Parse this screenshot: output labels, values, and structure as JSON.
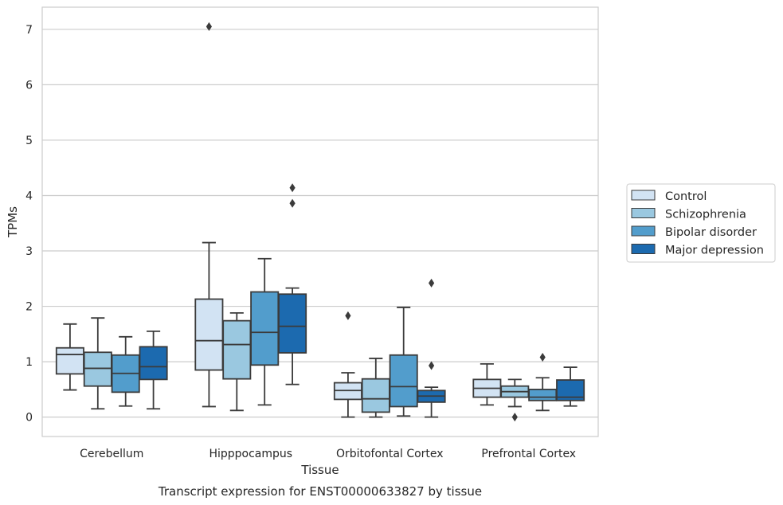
{
  "chart_data": {
    "type": "box",
    "caption": "Transcript expression for ENST00000633827 by tissue",
    "xlabel": "Tissue",
    "ylabel": "TPMs",
    "ylim": [
      -0.35,
      7.4
    ],
    "yticks": [
      0,
      1,
      2,
      3,
      4,
      5,
      6,
      7
    ],
    "grid": "horizontal",
    "legend_position": "right-outside",
    "categories": [
      "Cerebellum",
      "Hipppocampus",
      "Orbitofontal Cortex",
      "Prefrontal Cortex"
    ],
    "series": [
      {
        "name": "Control",
        "color": "#d2e3f3",
        "boxes": [
          {
            "whisker_low": 0.49,
            "q1": 0.78,
            "median": 1.13,
            "q3": 1.25,
            "whisker_high": 1.68,
            "outliers": []
          },
          {
            "whisker_low": 0.19,
            "q1": 0.85,
            "median": 1.38,
            "q3": 2.13,
            "whisker_high": 3.15,
            "outliers": [
              7.05
            ]
          },
          {
            "whisker_low": 0.0,
            "q1": 0.32,
            "median": 0.48,
            "q3": 0.62,
            "whisker_high": 0.8,
            "outliers": [
              1.83
            ]
          },
          {
            "whisker_low": 0.22,
            "q1": 0.36,
            "median": 0.52,
            "q3": 0.68,
            "whisker_high": 0.96,
            "outliers": []
          }
        ]
      },
      {
        "name": "Schizophrenia",
        "color": "#9ac8e0",
        "boxes": [
          {
            "whisker_low": 0.15,
            "q1": 0.56,
            "median": 0.88,
            "q3": 1.17,
            "whisker_high": 1.79,
            "outliers": []
          },
          {
            "whisker_low": 0.12,
            "q1": 0.69,
            "median": 1.31,
            "q3": 1.74,
            "whisker_high": 1.88,
            "outliers": []
          },
          {
            "whisker_low": 0.0,
            "q1": 0.09,
            "median": 0.33,
            "q3": 0.69,
            "whisker_high": 1.06,
            "outliers": []
          },
          {
            "whisker_low": 0.19,
            "q1": 0.36,
            "median": 0.46,
            "q3": 0.56,
            "whisker_high": 0.68,
            "outliers": [
              0.0
            ]
          }
        ]
      },
      {
        "name": "Bipolar disorder",
        "color": "#529dcc",
        "boxes": [
          {
            "whisker_low": 0.2,
            "q1": 0.45,
            "median": 0.79,
            "q3": 1.12,
            "whisker_high": 1.45,
            "outliers": []
          },
          {
            "whisker_low": 0.22,
            "q1": 0.94,
            "median": 1.53,
            "q3": 2.26,
            "whisker_high": 2.86,
            "outliers": []
          },
          {
            "whisker_low": 0.02,
            "q1": 0.19,
            "median": 0.55,
            "q3": 1.12,
            "whisker_high": 1.98,
            "outliers": []
          },
          {
            "whisker_low": 0.12,
            "q1": 0.3,
            "median": 0.36,
            "q3": 0.5,
            "whisker_high": 0.71,
            "outliers": [
              1.08
            ]
          }
        ]
      },
      {
        "name": "Major depression",
        "color": "#1c6aaf",
        "boxes": [
          {
            "whisker_low": 0.15,
            "q1": 0.68,
            "median": 0.91,
            "q3": 1.27,
            "whisker_high": 1.55,
            "outliers": []
          },
          {
            "whisker_low": 0.59,
            "q1": 1.16,
            "median": 1.64,
            "q3": 2.22,
            "whisker_high": 2.33,
            "outliers": [
              3.86,
              4.14
            ]
          },
          {
            "whisker_low": 0.0,
            "q1": 0.27,
            "median": 0.38,
            "q3": 0.48,
            "whisker_high": 0.54,
            "outliers": [
              0.93,
              2.42
            ]
          },
          {
            "whisker_low": 0.2,
            "q1": 0.3,
            "median": 0.36,
            "q3": 0.67,
            "whisker_high": 0.9,
            "outliers": []
          }
        ]
      }
    ]
  }
}
